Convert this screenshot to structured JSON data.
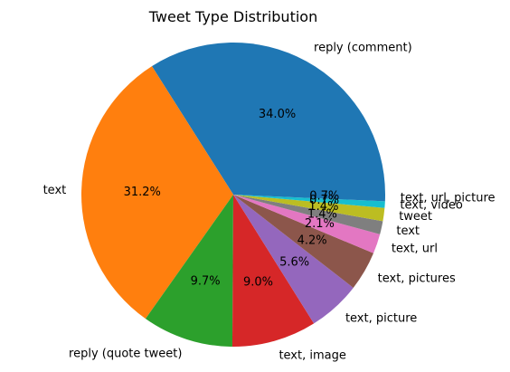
{
  "chart_data": {
    "type": "pie",
    "title": "Tweet Type Distribution",
    "categories": [
      "reply (comment)",
      "text",
      "reply (quote tweet)",
      "text, image",
      "text, picture",
      "text, pictures",
      "text, url",
      "text",
      "tweet",
      "text, video",
      "text, url, picture"
    ],
    "values": [
      34.0,
      31.2,
      9.7,
      9.0,
      5.6,
      4.2,
      2.1,
      1.4,
      1.4,
      0.7,
      0.7
    ],
    "percent_labels": [
      "34.0%",
      "31.2%",
      "9.7%",
      "9.0%",
      "5.6%",
      "4.2%",
      "2.1%",
      "1.4%",
      "1.4%",
      "0.7%",
      "0.7%"
    ],
    "colors": [
      "#1f77b4",
      "#ff7f0e",
      "#2ca02c",
      "#d62728",
      "#9467bd",
      "#8c564b",
      "#e377c2",
      "#7f7f7f",
      "#bcbd22",
      "#17becf",
      "#1f77b4"
    ],
    "start_angle": 0,
    "direction": "counterclockwise"
  }
}
